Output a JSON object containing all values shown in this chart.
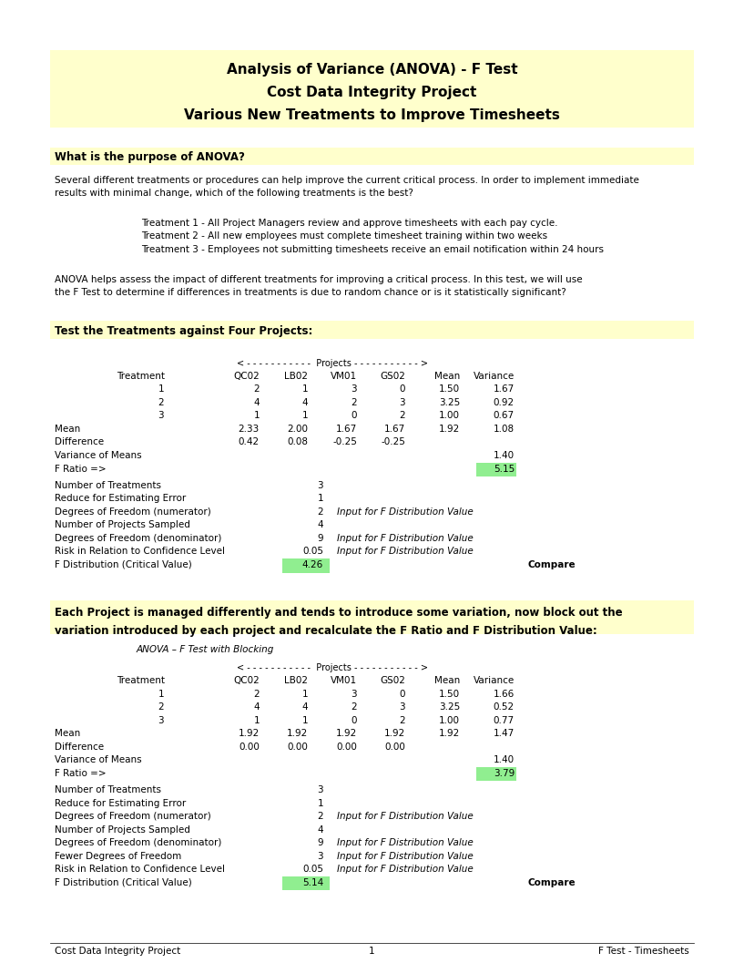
{
  "title_lines": [
    "Analysis of Variance (ANOVA) - F Test",
    "Cost Data Integrity Project",
    "Various New Treatments to Improve Timesheets"
  ],
  "title_bg": "#FFFFCC",
  "section1_header": "What is the purpose of ANOVA?",
  "section1_header_bg": "#FFFFCC",
  "body_text1_lines": [
    "Several different treatments or procedures can help improve the current critical process. In order to implement immediate",
    "results with minimal change, which of the following treatments is the best?"
  ],
  "treatments": [
    "Treatment 1 - All Project Managers review and approve timesheets with each pay cycle.",
    "Treatment 2 - All new employees must complete timesheet training within two weeks",
    "Treatment 3 - Employees not submitting timesheets receive an email notification within 24 hours"
  ],
  "body_text2_lines": [
    "ANOVA helps assess the impact of different treatments for improving a critical process. In this test, we will use",
    "the F Test to determine if differences in treatments is due to random chance or is it statistically significant?"
  ],
  "section2_header": "Test the Treatments against Four Projects:",
  "section2_header_bg": "#FFFFCC",
  "projects_header": "< - - - - - - - - - - -  Projects - - - - - - - - - - - >",
  "col_headers": [
    "Treatment",
    "QC02",
    "LB02",
    "VM01",
    "GS02",
    "Mean",
    "Variance"
  ],
  "table1_data": [
    [
      "1",
      "2",
      "1",
      "3",
      "0",
      "1.50",
      "1.67"
    ],
    [
      "2",
      "4",
      "4",
      "2",
      "3",
      "3.25",
      "0.92"
    ],
    [
      "3",
      "1",
      "1",
      "0",
      "2",
      "1.00",
      "0.67"
    ],
    [
      "Mean",
      "2.33",
      "2.00",
      "1.67",
      "1.67",
      "1.92",
      "1.08"
    ],
    [
      "Difference",
      "0.42",
      "0.08",
      "-0.25",
      "-0.25",
      "",
      ""
    ],
    [
      "Variance of Means",
      "",
      "",
      "",
      "",
      "",
      "1.40"
    ],
    [
      "F Ratio =>",
      "",
      "",
      "",
      "",
      "",
      "5.15"
    ]
  ],
  "f_ratio_bg1": "#90EE90",
  "stats1": [
    [
      "Number of Treatments",
      "3",
      ""
    ],
    [
      "Reduce for Estimating Error",
      "1",
      ""
    ],
    [
      "Degrees of Freedom (numerator)",
      "2",
      "Input for F Distribution Value"
    ],
    [
      "Number of Projects Sampled",
      "4",
      ""
    ],
    [
      "Degrees of Freedom (denominator)",
      "9",
      "Input for F Distribution Value"
    ],
    [
      "Risk in Relation to Confidence Level",
      "0.05",
      "Input for F Distribution Value"
    ],
    [
      "F Distribution (Critical Value)",
      "4.26",
      "Compare"
    ]
  ],
  "f_dist_bg1": "#90EE90",
  "section3_header_lines": [
    "Each Project is managed differently and tends to introduce some variation, now block out the",
    "variation introduced by each project and recalculate the F Ratio and F Distribution Value:"
  ],
  "section3_header_bg": "#FFFFCC",
  "anova_subtitle": "ANOVA – F Test with Blocking",
  "table2_data": [
    [
      "1",
      "2",
      "1",
      "3",
      "0",
      "1.50",
      "1.66"
    ],
    [
      "2",
      "4",
      "4",
      "2",
      "3",
      "3.25",
      "0.52"
    ],
    [
      "3",
      "1",
      "1",
      "0",
      "2",
      "1.00",
      "0.77"
    ],
    [
      "Mean",
      "1.92",
      "1.92",
      "1.92",
      "1.92",
      "1.92",
      "1.47"
    ],
    [
      "Difference",
      "0.00",
      "0.00",
      "0.00",
      "0.00",
      "",
      ""
    ],
    [
      "Variance of Means",
      "",
      "",
      "",
      "",
      "",
      "1.40"
    ],
    [
      "F Ratio =>",
      "",
      "",
      "",
      "",
      "",
      "3.79"
    ]
  ],
  "f_ratio_bg2": "#90EE90",
  "stats2": [
    [
      "Number of Treatments",
      "3",
      ""
    ],
    [
      "Reduce for Estimating Error",
      "1",
      ""
    ],
    [
      "Degrees of Freedom (numerator)",
      "2",
      "Input for F Distribution Value"
    ],
    [
      "Number of Projects Sampled",
      "4",
      ""
    ],
    [
      "Degrees of Freedom (denominator)",
      "9",
      "Input for F Distribution Value"
    ],
    [
      "Fewer Degrees of Freedom",
      "3",
      "Input for F Distribution Value"
    ],
    [
      "Risk in Relation to Confidence Level",
      "0.05",
      "Input for F Distribution Value"
    ],
    [
      "F Distribution (Critical Value)",
      "5.14",
      "Compare"
    ]
  ],
  "f_dist_bg2": "#90EE90",
  "footer_left": "Cost Data Integrity Project",
  "footer_center": "1",
  "footer_right": "F Test - Timesheets"
}
